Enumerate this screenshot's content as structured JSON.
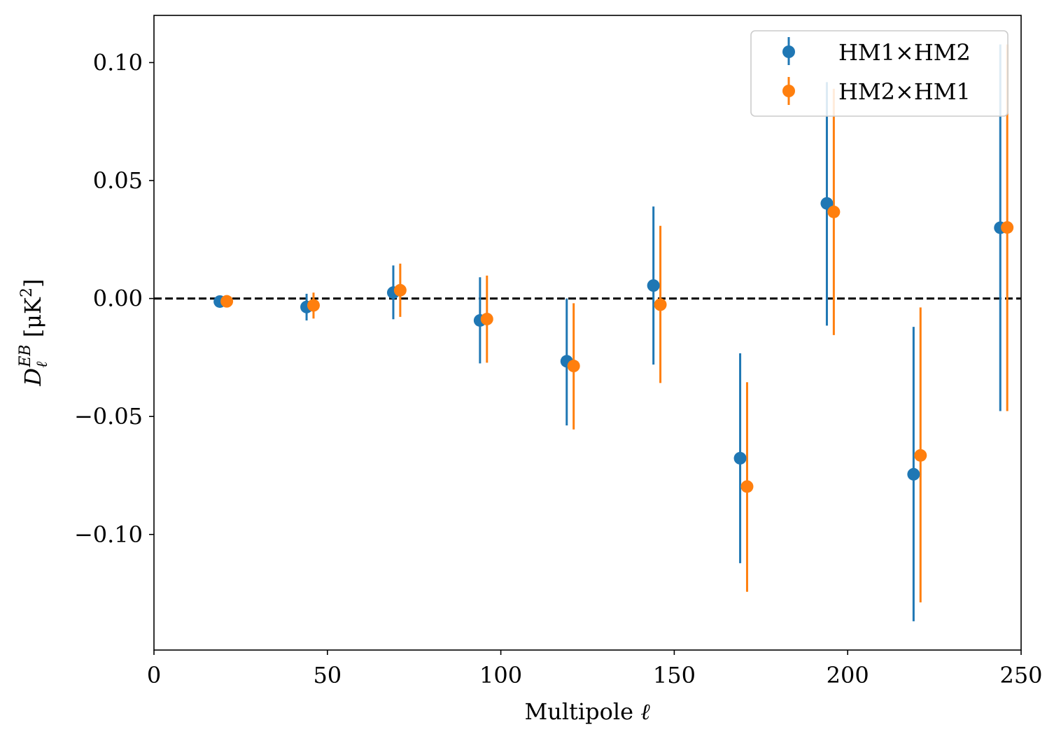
{
  "chart_data": {
    "type": "scatter",
    "xlabel_text": "Multipole ",
    "xlabel_symbol": "ℓ",
    "ylabel": {
      "main": "D",
      "sub": "ℓ",
      "sup": "EB",
      "unit_open": " [μK",
      "unit_sup": "2",
      "unit_close": "]"
    },
    "xlim": [
      0,
      250
    ],
    "ylim": [
      -0.149,
      0.12
    ],
    "xticks": [
      0,
      50,
      100,
      150,
      200,
      250
    ],
    "xtick_labels": [
      "0",
      "50",
      "100",
      "150",
      "200",
      "250"
    ],
    "yticks": [
      -0.1,
      -0.05,
      0.0,
      0.05,
      0.1
    ],
    "ytick_labels": [
      "−0.10",
      "−0.05",
      "0.00",
      "0.05",
      "0.10"
    ],
    "reference_line": {
      "y": 0,
      "style": "dashed",
      "color": "#000000"
    },
    "legend": {
      "position": "top-right"
    },
    "grid": false,
    "series": [
      {
        "name": "HM1×HM2",
        "color": "#1f77b4",
        "x": [
          19,
          44,
          69,
          94,
          119,
          144,
          169,
          194,
          219,
          244
        ],
        "y": [
          -0.0013,
          -0.0036,
          0.0025,
          -0.0093,
          -0.0266,
          0.0055,
          -0.0677,
          0.0403,
          -0.0745,
          0.03
        ],
        "ylow": [
          -0.0018,
          -0.0093,
          -0.0088,
          -0.0275,
          -0.0538,
          -0.028,
          -0.1122,
          -0.0115,
          -0.1368,
          -0.0477
        ],
        "yhigh": [
          -0.0005,
          0.002,
          0.014,
          0.009,
          0.0,
          0.039,
          -0.0232,
          0.0917,
          -0.012,
          0.1077
        ]
      },
      {
        "name": "HM2×HM1",
        "color": "#ff7f0e",
        "x": [
          21,
          46,
          71,
          96,
          121,
          146,
          171,
          196,
          221,
          246
        ],
        "y": [
          -0.0012,
          -0.0029,
          0.0035,
          -0.0087,
          -0.0286,
          -0.0026,
          -0.0797,
          0.0367,
          -0.0665,
          0.0301
        ],
        "ylow": [
          -0.0017,
          -0.0085,
          -0.0078,
          -0.0272,
          -0.0555,
          -0.0358,
          -0.1243,
          -0.0155,
          -0.1288,
          -0.0477
        ],
        "yhigh": [
          -0.0007,
          0.0025,
          0.0148,
          0.0097,
          -0.002,
          0.0308,
          -0.0355,
          0.0889,
          -0.0038,
          0.1077
        ]
      }
    ]
  }
}
